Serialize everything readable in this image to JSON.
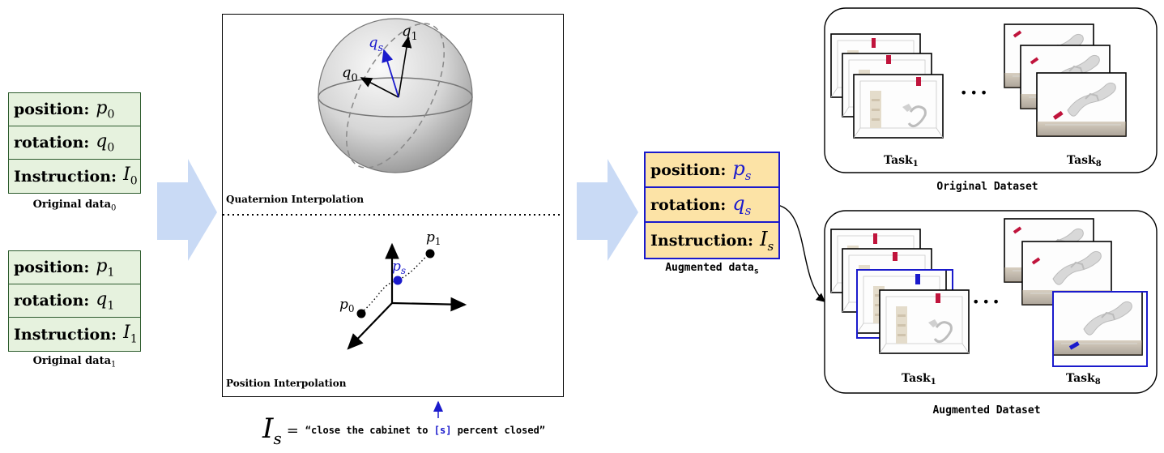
{
  "original0": {
    "position_label": "position:",
    "position_sym": "p",
    "position_sub": "0",
    "rotation_label": "rotation:",
    "rotation_sym": "q",
    "rotation_sub": "0",
    "instruction_label": "Instruction:",
    "instruction_sym": "I",
    "instruction_sub": "0",
    "caption": "Original data",
    "caption_sub": "0"
  },
  "original1": {
    "position_label": "position:",
    "position_sym": "p",
    "position_sub": "1",
    "rotation_label": "rotation:",
    "rotation_sym": "q",
    "rotation_sub": "1",
    "instruction_label": "Instruction:",
    "instruction_sym": "I",
    "instruction_sub": "1",
    "caption": "Original data",
    "caption_sub": "1"
  },
  "augmented": {
    "position_label": "position:",
    "position_sym": "p",
    "position_sub": "s",
    "rotation_label": "rotation:",
    "rotation_sym": "q",
    "rotation_sub": "s",
    "instruction_label": "Instruction:",
    "instruction_sym": "I",
    "instruction_sub": "s",
    "caption": "Augmented data",
    "caption_sub": "s"
  },
  "center": {
    "quaternion_title": "Quaternion Interpolation",
    "position_title": "Position Interpolation",
    "q0": "q",
    "q0_sub": "0",
    "q1": "q",
    "q1_sub": "1",
    "qs": "q",
    "qs_sub": "s",
    "p0": "p",
    "p0_sub": "0",
    "p1": "p",
    "p1_sub": "1",
    "ps": "p",
    "ps_sub": "s"
  },
  "instruction_template": {
    "sym": "I",
    "sub": "s",
    "eq": "=",
    "text_before": "“close the cabinet to ",
    "slot": "[s]",
    "text_after": " percent closed”"
  },
  "original_dataset": {
    "title": "Original Dataset",
    "task_first": "Task",
    "task_first_sub": "1",
    "task_last": "Task",
    "task_last_sub": "8",
    "ellipsis": "•••"
  },
  "augmented_dataset": {
    "title": "Augmented Dataset",
    "task_first": "Task",
    "task_first_sub": "1",
    "task_last": "Task",
    "task_last_sub": "8",
    "ellipsis": "•••"
  },
  "colors": {
    "original_box_fill": "#e6f2de",
    "original_box_border": "#2e5c2e",
    "augmented_box_fill": "#fce3a6",
    "augmented_accent": "#1a1acc",
    "flow_arrow": "#c9daf5",
    "gripper_red": "#c0143c",
    "gripper_blue": "#1a1acc"
  }
}
